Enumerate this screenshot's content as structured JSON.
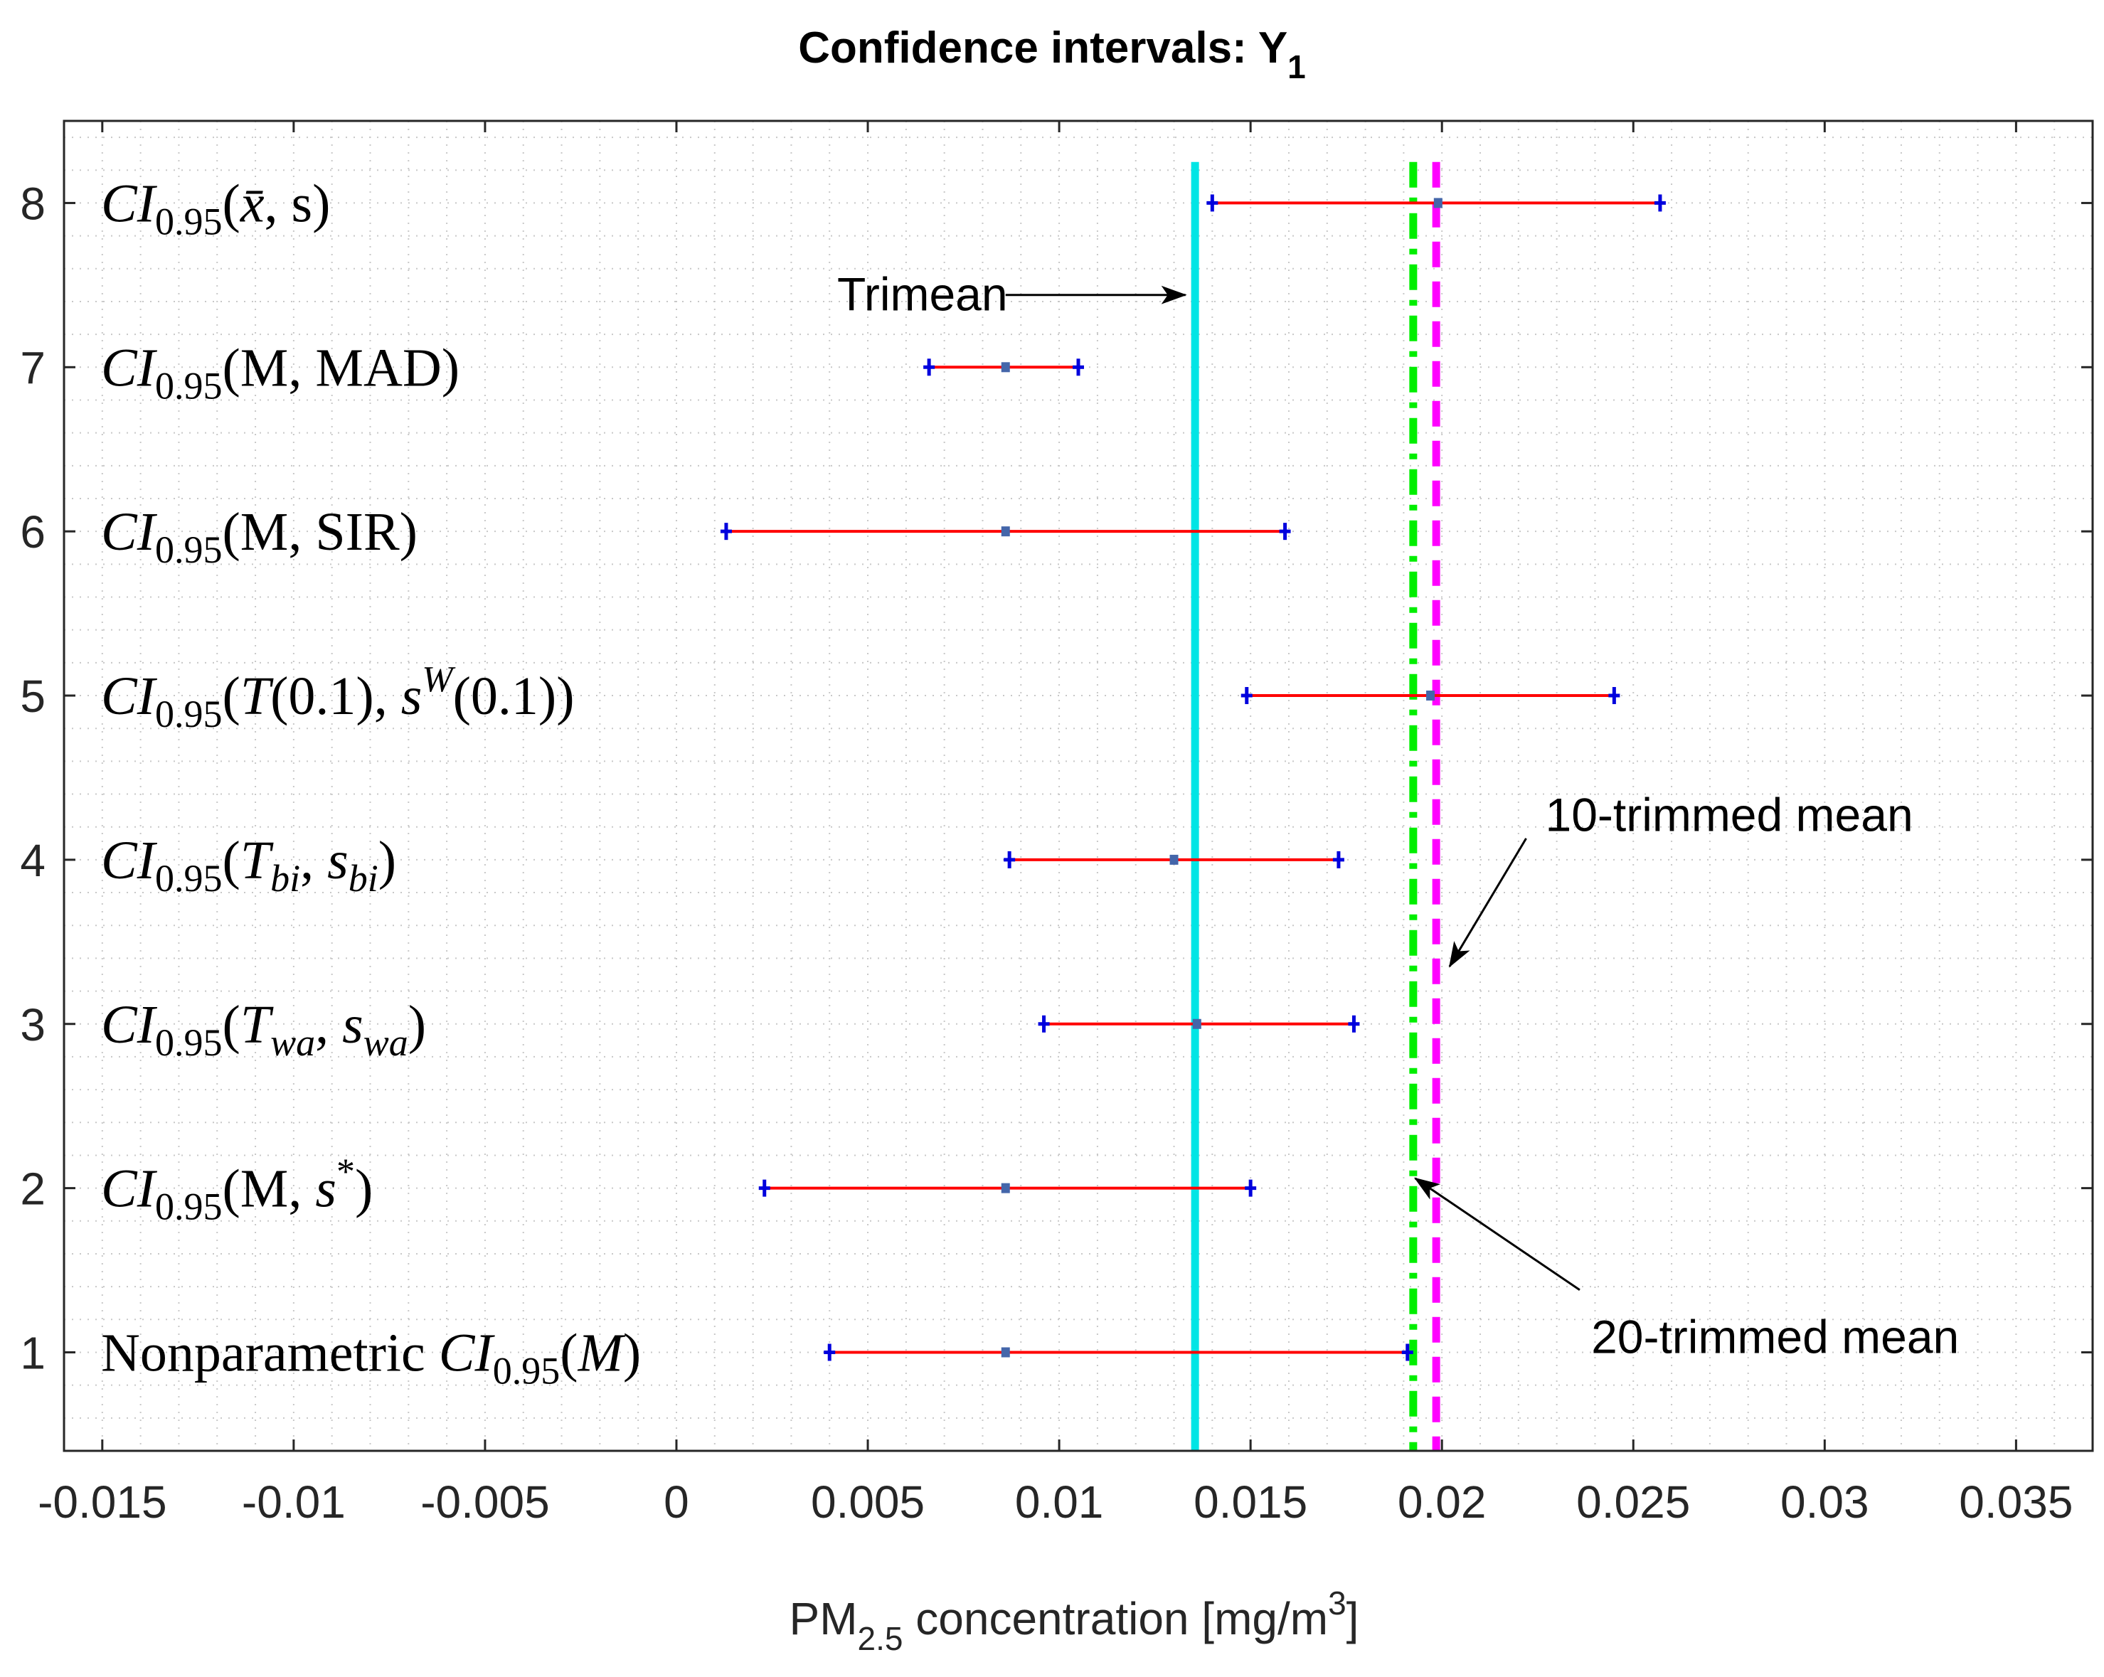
{
  "chart_data": {
    "type": "errorbar",
    "title": "Confidence intervals: Y",
    "title_subscript": "1",
    "xlabel_prefix": "PM",
    "xlabel_subscript": "2.5",
    "xlabel_middle": " concentration [mg/m",
    "xlabel_superscript": "3",
    "xlabel_suffix": "]",
    "xlim": [
      -0.016,
      0.037
    ],
    "ylim": [
      0.4,
      8.5
    ],
    "xticks": [
      -0.015,
      -0.01,
      -0.005,
      0,
      0.005,
      0.01,
      0.015,
      0.02,
      0.025,
      0.03,
      0.035
    ],
    "xtick_labels": [
      "-0.015",
      "-0.01",
      "-0.005",
      "0",
      "0.005",
      "0.01",
      "0.015",
      "0.02",
      "0.025",
      "0.03",
      "0.035"
    ],
    "yticks": [
      1,
      2,
      3,
      4,
      5,
      6,
      7,
      8
    ],
    "ytick_labels": [
      "1",
      "2",
      "3",
      "4",
      "5",
      "6",
      "7",
      "8"
    ],
    "grid": "minor-dotted",
    "series": [
      {
        "y": 8,
        "label": [
          {
            "t": "CI",
            "s": "it"
          },
          {
            "t": "0.95",
            "s": "sub"
          },
          {
            "t": "("
          },
          {
            "t": "x̄",
            "s": "it"
          },
          {
            "t": ", s)"
          }
        ],
        "lower": 0.014,
        "center": 0.0199,
        "upper": 0.0257
      },
      {
        "y": 7,
        "label": [
          {
            "t": "CI",
            "s": "it"
          },
          {
            "t": "0.95",
            "s": "sub"
          },
          {
            "t": "(M, MAD)"
          }
        ],
        "lower": 0.0066,
        "center": 0.0086,
        "upper": 0.0105
      },
      {
        "y": 6,
        "label": [
          {
            "t": "CI",
            "s": "it"
          },
          {
            "t": "0.95",
            "s": "sub"
          },
          {
            "t": "(M, SIR)"
          }
        ],
        "lower": 0.0013,
        "center": 0.0086,
        "upper": 0.0159
      },
      {
        "y": 5,
        "label": [
          {
            "t": "CI",
            "s": "it"
          },
          {
            "t": "0.95",
            "s": "sub"
          },
          {
            "t": "("
          },
          {
            "t": "T",
            "s": "it"
          },
          {
            "t": "(0.1), "
          },
          {
            "t": "s",
            "s": "it"
          },
          {
            "t": "W",
            "s": "sup-it"
          },
          {
            "t": "(0.1))"
          }
        ],
        "lower": 0.0149,
        "center": 0.0197,
        "upper": 0.0245
      },
      {
        "y": 4,
        "label": [
          {
            "t": "CI",
            "s": "it"
          },
          {
            "t": "0.95",
            "s": "sub"
          },
          {
            "t": "("
          },
          {
            "t": "T",
            "s": "it"
          },
          {
            "t": "bi",
            "s": "sub-it"
          },
          {
            "t": ", "
          },
          {
            "t": "s",
            "s": "it"
          },
          {
            "t": "bi",
            "s": "sub-it"
          },
          {
            "t": ")"
          }
        ],
        "lower": 0.0087,
        "center": 0.013,
        "upper": 0.0173
      },
      {
        "y": 3,
        "label": [
          {
            "t": "CI",
            "s": "it"
          },
          {
            "t": "0.95",
            "s": "sub"
          },
          {
            "t": "("
          },
          {
            "t": "T",
            "s": "it"
          },
          {
            "t": "wa",
            "s": "sub-it"
          },
          {
            "t": ", "
          },
          {
            "t": "s",
            "s": "it"
          },
          {
            "t": "wa",
            "s": "sub-it"
          },
          {
            "t": ")"
          }
        ],
        "lower": 0.0096,
        "center": 0.0136,
        "upper": 0.0177
      },
      {
        "y": 2,
        "label": [
          {
            "t": "CI",
            "s": "it"
          },
          {
            "t": "0.95",
            "s": "sub"
          },
          {
            "t": "(M, "
          },
          {
            "t": "s",
            "s": "it"
          },
          {
            "t": "*",
            "s": "sup"
          },
          {
            "t": ")"
          }
        ],
        "lower": 0.0023,
        "center": 0.0086,
        "upper": 0.015
      },
      {
        "y": 1,
        "label": [
          {
            "t": "Nonparametric "
          },
          {
            "t": "CI",
            "s": "it"
          },
          {
            "t": "0.95",
            "s": "sub"
          },
          {
            "t": "("
          },
          {
            "t": "M",
            "s": "it"
          },
          {
            "t": ")"
          }
        ],
        "lower": 0.004,
        "center": 0.0086,
        "upper": 0.0191
      }
    ],
    "reference_lines": [
      {
        "name": "trimean",
        "x": 0.01355,
        "color": "#00e5e5",
        "style": "solid"
      },
      {
        "name": "20-trimmed-mean",
        "x": 0.01925,
        "color": "#00ee00",
        "style": "dashdot"
      },
      {
        "name": "10-trimmed-mean",
        "x": 0.01985,
        "color": "#ff00ff",
        "style": "dashed"
      }
    ],
    "annotations": [
      {
        "name": "trimean-annotation",
        "text": "Trimean",
        "text_x": 0.0042,
        "text_y": 7.44,
        "arrow_from": [
          0.0086,
          7.44
        ],
        "arrow_to": [
          0.0133,
          7.44
        ]
      },
      {
        "name": "ten-trimmed-annotation",
        "text": "10-trimmed mean",
        "text_x": 0.0227,
        "text_y": 4.27,
        "arrow_from": [
          0.0222,
          4.13
        ],
        "arrow_to": [
          0.0202,
          3.35
        ]
      },
      {
        "name": "twenty-trimmed-annotation",
        "text": "20-trimmed mean",
        "text_x": 0.0239,
        "text_y": 1.09,
        "arrow_from": [
          0.0236,
          1.38
        ],
        "arrow_to": [
          0.0193,
          2.06
        ]
      }
    ],
    "colors": {
      "interval": "#ff0000",
      "marker": "#0000dd",
      "center_marker": "#4466aa",
      "axis": "#262626",
      "grid": "#c8c8c8"
    }
  }
}
